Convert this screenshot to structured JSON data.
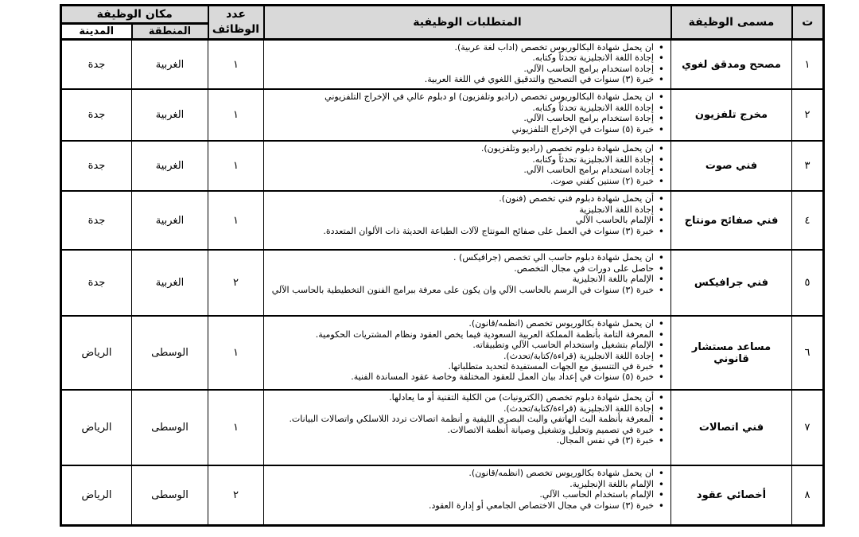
{
  "colors": {
    "header_bg": "#d9d9d9",
    "border": "#000000",
    "cell_bg": "#ffffff"
  },
  "table": {
    "headers": {
      "index": "ت",
      "job_title": "مسمى الوظيفة",
      "requirements": "المتطلبات الوظيفية",
      "vacancies_line1": "عدد",
      "vacancies_line2": "الوظائف",
      "location": "مكان الوظيفة",
      "region": "المنطقة",
      "city": "المدينة"
    },
    "rows": [
      {
        "index": "١",
        "job_title": "مصحح ومدقق لغوي",
        "vacancies": "١",
        "region": "الغربية",
        "city": "جدة",
        "requirements": [
          "ان يحمل شهادة البكالوريوس تخصص (اداب لغة عربية).",
          "إجادة اللغة الانجليزية تحدثاً وكتابه.",
          "إجادة استخدام برامج الحاسب الآلي.",
          "خبرة (٣) سنوات في التصحيح والتدقيق اللغوي في اللغة العربية."
        ]
      },
      {
        "index": "٢",
        "job_title": "مخرج تلفزيون",
        "vacancies": "١",
        "region": "الغربية",
        "city": "جدة",
        "requirements": [
          "ان يحمل شهادة البكالوريوس تخصص (راديو وتلفزيون) او دبلوم عالي في الإخراج التلفزيوني",
          "إجادة اللغة الانجليزية تحدثاً وكتابه.",
          "إجادة استخدام برامج الحاسب الآلي.",
          "خبرة (٥) سنوات في الإخراج التلفزيوني"
        ]
      },
      {
        "index": "٣",
        "job_title": "فني صوت",
        "vacancies": "١",
        "region": "الغربية",
        "city": "جدة",
        "requirements": [
          "ان يحمل شهادة دبلوم تخصص (راديو وتلفزيون).",
          "إجادة اللغة الانجليزية تحدثاً وكتابه.",
          "إجادة استخدام برامج الحاسب الآلي.",
          "خبرة (٢) سنتين كفني صوت."
        ]
      },
      {
        "index": "٤",
        "job_title": "فني صفائح مونتاج",
        "vacancies": "١",
        "region": "الغربية",
        "city": "جدة",
        "requirements": [
          "أن يحمل شهادة دبلوم فني تخصص (فنون).",
          "إجادة اللغة الانجليزية",
          "الإلمام بالحاسب الآلي",
          "خبرة (٣) سنوات في العمل على صفائح المونتاج لآلات الطباعة الحديثة ذات الألوان المتعددة."
        ]
      },
      {
        "index": "٥",
        "job_title": "فني جرافيكس",
        "vacancies": "٢",
        "region": "الغربية",
        "city": "جدة",
        "requirements": [
          "ان يحمل شهادة دبلوم حاسب الي تخصص (جرافيكس) .",
          "حاصل على دورات في مجال التخصص.",
          "الإلمام باللغة الانجليزية",
          "خبرة (٣) سنوات في الرسم بالحاسب الآلي وان يكون على معرفة ببرامج الفنون التخطيطية بالحاسب الآلي"
        ]
      },
      {
        "index": "٦",
        "job_title": "مساعد مستشار قانوني",
        "vacancies": "١",
        "region": "الوسطى",
        "city": "الرياض",
        "requirements": [
          "ان يحمل شهادة بكالوريوس تخصص (انظمه/قانون).",
          "المعرفة التامة بأنظمة المملكة العربية السعودية فيما يخص العقود ونظام المشتريات الحكومية.",
          "الإلمام بتشغيل واستخدام الحاسب الآلي وتطبيقاته.",
          "إجادة اللغة الانجليزية (قراءة/كتابة/تحدث).",
          "خبرة في التنسيق مع الجهات المستفيدة لتحديد متطلباتها.",
          "خبرة (٥) سنوات في إعداد بيان العمل للعقود المختلفة وخاصة عقود المساندة الفنية."
        ]
      },
      {
        "index": "٧",
        "job_title": "فني اتصالات",
        "vacancies": "١",
        "region": "الوسطى",
        "city": "الرياض",
        "requirements": [
          "أن يحمل شهادة دبلوم تخصص (الكترونيات) من الكلية التقنية أو ما يعادلها.",
          "إجادة اللغة الانجليزية (قراءة/كتابة/تحدث).",
          "المعرفة بأنظمة البث الهاتفي والبث البصري الليفية و أنظمة اتصالات تردد اللاسلكي واتصالات البيانات.",
          "خبرة في تصميم وتحليل وتشغيل وصيانة أنظمة الاتصالات.",
          "خبرة (٣) في نفس المجال."
        ]
      },
      {
        "index": "٨",
        "job_title": "أخصائي عقود",
        "vacancies": "٢",
        "region": "الوسطى",
        "city": "الرياض",
        "requirements": [
          "ان يحمل شهادة بكالوريوس تخصص (انظمه/قانون).",
          "الإلمام باللغة الإنجليزية.",
          "الإلمام باستخدام الحاسب الآلي.",
          "خبرة (٣) سنوات في مجال الاختصاص الجامعي أو إدارة العقود."
        ]
      }
    ]
  }
}
